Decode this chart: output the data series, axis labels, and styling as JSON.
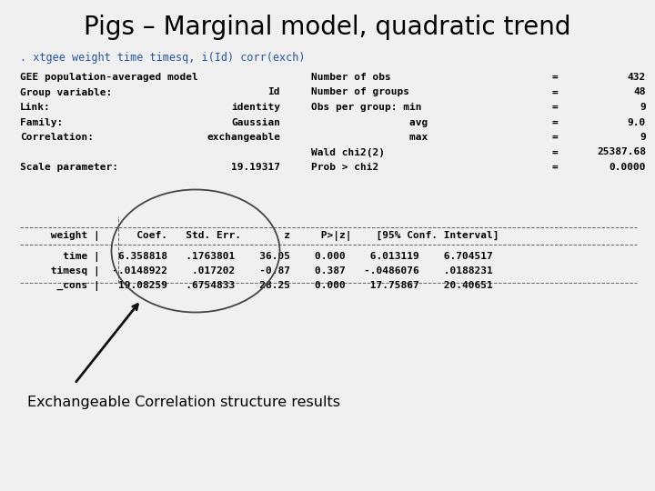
{
  "title": "Pigs – Marginal model, quadratic trend",
  "command_line": ". xtgee weight time timesq, i(Id) corr(exch)",
  "left_labels": [
    "GEE population-averaged model",
    "Group variable:",
    "Link:",
    "Family:",
    "Correlation:",
    "",
    "Scale parameter:"
  ],
  "left_values": [
    "",
    "Id",
    "identity",
    "Gaussian",
    "exchangeable",
    "",
    "19.19317"
  ],
  "right_labels": [
    "Number of obs",
    "Number of groups",
    "Obs per group: min",
    "                avg",
    "                max",
    "Wald chi2(2)",
    "Prob > chi2"
  ],
  "right_eq": [
    "=",
    "=",
    "=",
    "",
    "",
    "=",
    "="
  ],
  "right_inner_eq": [
    "",
    "",
    "=",
    "=",
    "=",
    "",
    ""
  ],
  "right_values": [
    "432",
    "48",
    "9",
    "9.0",
    "9",
    "25387.68",
    "0.0000"
  ],
  "table_header": "     weight |      Coef.   Std. Err.       z     P>|z|    [95% Conf. Interval]",
  "table_rows": [
    "       time |   6.358818   .1763801    36.05    0.000    6.013119    6.704517",
    "     timesq |  -.0148922    .017202    -0.87    0.387   -.0486076    .0188231",
    "      _cons |   19.08259   .6754833    28.25    0.000    17.75867    20.40651"
  ],
  "annotation": "Exchangeable Correlation structure results",
  "bg_color": "#f0f0f0",
  "title_color": "#000000",
  "command_color": "#2255aa",
  "text_color": "#000000",
  "sep_color": "#666666",
  "ellipse_color": "#444444",
  "arrow_color": "#111111"
}
